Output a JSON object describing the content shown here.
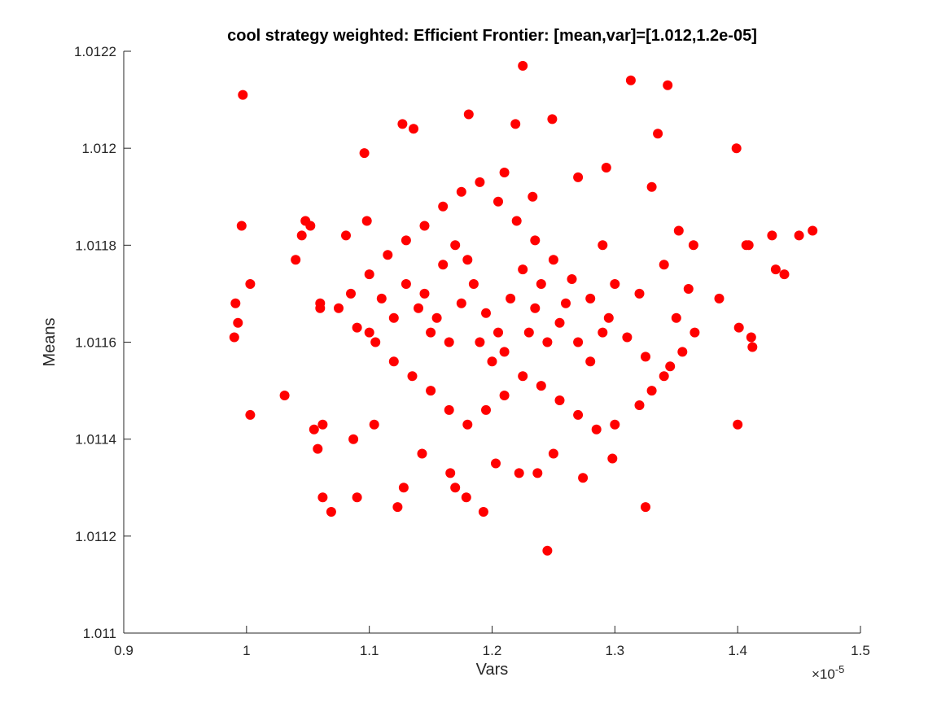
{
  "chart_data": {
    "type": "scatter",
    "title": "cool strategy weighted: Efficient Frontier: [mean,var]=[1.012,1.2e-05]",
    "xlabel": "Vars",
    "ylabel": "Means",
    "x_multiplier_label": "×10",
    "x_multiplier_exponent": "-5",
    "xlim": [
      0.9,
      1.5
    ],
    "ylim": [
      1.011,
      1.0122
    ],
    "x_ticks": [
      "0.9",
      "1",
      "1.1",
      "1.2",
      "1.3",
      "1.4",
      "1.5"
    ],
    "y_ticks": [
      "1.011",
      "1.0112",
      "1.0114",
      "1.0116",
      "1.0118",
      "1.012",
      "1.0122"
    ],
    "x_tick_values": [
      0.9,
      1.0,
      1.1,
      1.2,
      1.3,
      1.4,
      1.5
    ],
    "y_tick_values": [
      1.011,
      1.0112,
      1.0114,
      1.0116,
      1.0118,
      1.012,
      1.0122
    ],
    "marker_color": "#ff0000",
    "grid": false,
    "x_unit_scale": "1e-5",
    "series": [
      {
        "values_note": "",
        "points": [
          [
            0.997,
            1.01211
          ],
          [
            1.225,
            1.01217
          ],
          [
            1.313,
            1.01214
          ],
          [
            1.343,
            1.01213
          ],
          [
            1.127,
            1.01205
          ],
          [
            1.136,
            1.01204
          ],
          [
            1.181,
            1.01207
          ],
          [
            1.249,
            1.01206
          ],
          [
            1.335,
            1.01203
          ],
          [
            1.399,
            1.012
          ],
          [
            1.219,
            1.01205
          ],
          [
            1.096,
            1.01199
          ],
          [
            1.461,
            1.01183
          ],
          [
            1.431,
            1.01175
          ],
          [
            1.438,
            1.01174
          ],
          [
            1.428,
            1.01182
          ],
          [
            0.996,
            1.01184
          ],
          [
            1.003,
            1.01172
          ],
          [
            0.991,
            1.01168
          ],
          [
            0.99,
            1.01161
          ],
          [
            0.993,
            1.01164
          ],
          [
            1.031,
            1.01149
          ],
          [
            1.003,
            1.01145
          ],
          [
            1.385,
            1.01169
          ],
          [
            1.401,
            1.01163
          ],
          [
            1.411,
            1.01161
          ],
          [
            1.412,
            1.01159
          ],
          [
            1.4,
            1.01143
          ],
          [
            1.062,
            1.01128
          ],
          [
            1.069,
            1.01125
          ],
          [
            1.09,
            1.01128
          ],
          [
            1.123,
            1.01126
          ],
          [
            1.128,
            1.0113
          ],
          [
            1.17,
            1.0113
          ],
          [
            1.179,
            1.01128
          ],
          [
            1.193,
            1.01125
          ],
          [
            1.245,
            1.01117
          ],
          [
            1.325,
            1.01126
          ],
          [
            1.274,
            1.01132
          ],
          [
            1.237,
            1.01133
          ],
          [
            1.222,
            1.01133
          ],
          [
            1.203,
            1.01135
          ],
          [
            1.298,
            1.01136
          ],
          [
            1.25,
            1.01137
          ],
          [
            1.166,
            1.01133
          ],
          [
            1.143,
            1.01137
          ],
          [
            1.058,
            1.01138
          ],
          [
            1.087,
            1.0114
          ],
          [
            1.104,
            1.01143
          ],
          [
            1.062,
            1.01143
          ],
          [
            1.055,
            1.01142
          ],
          [
            1.407,
            1.0118
          ],
          [
            1.409,
            1.0118
          ],
          [
            1.45,
            1.01182
          ],
          [
            1.364,
            1.0118
          ],
          [
            1.352,
            1.01183
          ],
          [
            1.06,
            1.01168
          ],
          [
            1.06,
            1.01167
          ],
          [
            1.04,
            1.01177
          ],
          [
            1.045,
            1.01182
          ],
          [
            1.048,
            1.01185
          ],
          [
            1.052,
            1.01184
          ],
          [
            1.081,
            1.01182
          ],
          [
            1.098,
            1.01185
          ],
          [
            1.21,
            1.01195
          ],
          [
            1.233,
            1.0119
          ],
          [
            1.27,
            1.01194
          ],
          [
            1.293,
            1.01196
          ],
          [
            1.33,
            1.01192
          ],
          [
            1.29,
            1.0118
          ],
          [
            1.3,
            1.01172
          ],
          [
            1.32,
            1.0117
          ],
          [
            1.34,
            1.01176
          ],
          [
            1.35,
            1.01165
          ],
          [
            1.345,
            1.01155
          ],
          [
            1.33,
            1.0115
          ],
          [
            1.32,
            1.01147
          ],
          [
            1.3,
            1.01143
          ],
          [
            1.285,
            1.01142
          ],
          [
            1.27,
            1.01145
          ],
          [
            1.255,
            1.01148
          ],
          [
            1.24,
            1.01151
          ],
          [
            1.225,
            1.01153
          ],
          [
            1.21,
            1.01149
          ],
          [
            1.195,
            1.01146
          ],
          [
            1.18,
            1.01143
          ],
          [
            1.165,
            1.01146
          ],
          [
            1.15,
            1.0115
          ],
          [
            1.135,
            1.01153
          ],
          [
            1.12,
            1.01156
          ],
          [
            1.105,
            1.0116
          ],
          [
            1.09,
            1.01163
          ],
          [
            1.075,
            1.01167
          ],
          [
            1.085,
            1.0117
          ],
          [
            1.1,
            1.01174
          ],
          [
            1.115,
            1.01178
          ],
          [
            1.13,
            1.01181
          ],
          [
            1.145,
            1.01184
          ],
          [
            1.16,
            1.01188
          ],
          [
            1.175,
            1.01191
          ],
          [
            1.19,
            1.01193
          ],
          [
            1.205,
            1.01189
          ],
          [
            1.22,
            1.01185
          ],
          [
            1.235,
            1.01181
          ],
          [
            1.25,
            1.01177
          ],
          [
            1.265,
            1.01173
          ],
          [
            1.28,
            1.01169
          ],
          [
            1.295,
            1.01165
          ],
          [
            1.31,
            1.01161
          ],
          [
            1.325,
            1.01157
          ],
          [
            1.34,
            1.01153
          ],
          [
            1.355,
            1.01158
          ],
          [
            1.365,
            1.01162
          ],
          [
            1.36,
            1.01171
          ],
          [
            1.145,
            1.0117
          ],
          [
            1.155,
            1.01165
          ],
          [
            1.165,
            1.0116
          ],
          [
            1.175,
            1.01168
          ],
          [
            1.185,
            1.01172
          ],
          [
            1.195,
            1.01166
          ],
          [
            1.205,
            1.01162
          ],
          [
            1.215,
            1.01169
          ],
          [
            1.225,
            1.01175
          ],
          [
            1.235,
            1.01167
          ],
          [
            1.245,
            1.0116
          ],
          [
            1.255,
            1.01164
          ],
          [
            1.16,
            1.01176
          ],
          [
            1.17,
            1.0118
          ],
          [
            1.18,
            1.01177
          ],
          [
            1.19,
            1.0116
          ],
          [
            1.2,
            1.01156
          ],
          [
            1.21,
            1.01158
          ],
          [
            1.15,
            1.01162
          ],
          [
            1.14,
            1.01167
          ],
          [
            1.13,
            1.01172
          ],
          [
            1.12,
            1.01165
          ],
          [
            1.11,
            1.01169
          ],
          [
            1.1,
            1.01162
          ],
          [
            1.23,
            1.01162
          ],
          [
            1.24,
            1.01172
          ],
          [
            1.26,
            1.01168
          ],
          [
            1.27,
            1.0116
          ],
          [
            1.28,
            1.01156
          ],
          [
            1.29,
            1.01162
          ]
        ]
      }
    ]
  }
}
